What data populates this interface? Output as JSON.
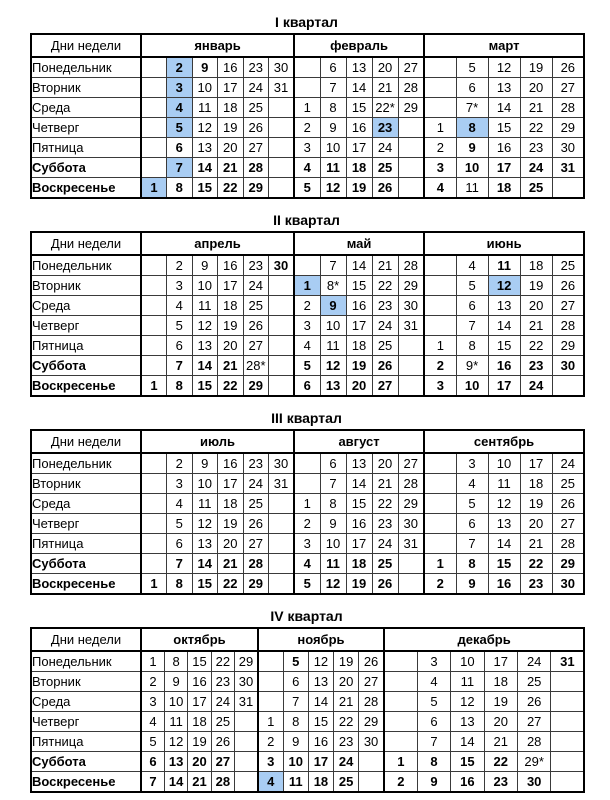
{
  "colors": {
    "holiday_cell_bg": "#a9cdf3",
    "dayoff_text": "#dd1111",
    "regular_text": "#000000",
    "border": "#000000"
  },
  "days_header": "Дни недели",
  "day_names": [
    {
      "label": "Понедельник",
      "weekend": false
    },
    {
      "label": "Вторник",
      "weekend": false
    },
    {
      "label": "Среда",
      "weekend": false
    },
    {
      "label": "Четверг",
      "weekend": false
    },
    {
      "label": "Пятница",
      "weekend": false
    },
    {
      "label": "Суббота",
      "weekend": true
    },
    {
      "label": "Воскресенье",
      "weekend": true
    }
  ],
  "quarters": [
    {
      "title": "I квартал",
      "months": [
        {
          "name": "январь",
          "rows": [
            [
              "",
              "2h",
              "9r",
              "16",
              "23",
              "30"
            ],
            [
              "",
              "3h",
              "10",
              "17",
              "24",
              "31"
            ],
            [
              "",
              "4h",
              "11",
              "18",
              "25",
              ""
            ],
            [
              "",
              "5h",
              "12",
              "19",
              "26",
              ""
            ],
            [
              "",
              "6r",
              "13",
              "20",
              "27",
              ""
            ],
            [
              "",
              "7h",
              "14r",
              "21r",
              "28r",
              ""
            ],
            [
              "1h",
              "8r",
              "15r",
              "22r",
              "29r",
              ""
            ]
          ]
        },
        {
          "name": "февраль",
          "rows": [
            [
              "",
              "6",
              "13",
              "20",
              "27"
            ],
            [
              "",
              "7",
              "14",
              "21",
              "28"
            ],
            [
              "1",
              "8",
              "15",
              "22*",
              "29"
            ],
            [
              "2",
              "9",
              "16",
              "23h",
              ""
            ],
            [
              "3",
              "10",
              "17",
              "24",
              ""
            ],
            [
              "4r",
              "11r",
              "18r",
              "25r",
              ""
            ],
            [
              "5r",
              "12r",
              "19r",
              "26r",
              ""
            ]
          ]
        },
        {
          "name": "март",
          "rows": [
            [
              "",
              "5",
              "12",
              "19",
              "26"
            ],
            [
              "",
              "6",
              "13",
              "20",
              "27"
            ],
            [
              "",
              "7*",
              "14",
              "21",
              "28"
            ],
            [
              "1",
              "8h",
              "15",
              "22",
              "29"
            ],
            [
              "2",
              "9r",
              "16",
              "23",
              "30"
            ],
            [
              "3r",
              "10r",
              "17r",
              "24r",
              "31r"
            ],
            [
              "4r",
              "11",
              "18r",
              "25r",
              ""
            ]
          ]
        }
      ]
    },
    {
      "title": "II квартал",
      "months": [
        {
          "name": "апрель",
          "rows": [
            [
              "",
              "2",
              "9",
              "16",
              "23",
              "30r"
            ],
            [
              "",
              "3",
              "10",
              "17",
              "24",
              ""
            ],
            [
              "",
              "4",
              "11",
              "18",
              "25",
              ""
            ],
            [
              "",
              "5",
              "12",
              "19",
              "26",
              ""
            ],
            [
              "",
              "6",
              "13",
              "20",
              "27",
              ""
            ],
            [
              "",
              "7r",
              "14r",
              "21r",
              "28*",
              ""
            ],
            [
              "1r",
              "8r",
              "15r",
              "22r",
              "29r",
              ""
            ]
          ]
        },
        {
          "name": "май",
          "rows": [
            [
              "",
              "7",
              "14",
              "21",
              "28"
            ],
            [
              "1h",
              "8*",
              "15",
              "22",
              "29"
            ],
            [
              "2",
              "9h",
              "16",
              "23",
              "30"
            ],
            [
              "3",
              "10",
              "17",
              "24",
              "31"
            ],
            [
              "4",
              "11",
              "18",
              "25",
              ""
            ],
            [
              "5r",
              "12r",
              "19r",
              "26r",
              ""
            ],
            [
              "6r",
              "13r",
              "20r",
              "27r",
              ""
            ]
          ]
        },
        {
          "name": "июнь",
          "rows": [
            [
              "",
              "4",
              "11r",
              "18",
              "25"
            ],
            [
              "",
              "5",
              "12h",
              "19",
              "26"
            ],
            [
              "",
              "6",
              "13",
              "20",
              "27"
            ],
            [
              "",
              "7",
              "14",
              "21",
              "28"
            ],
            [
              "1",
              "8",
              "15",
              "22",
              "29"
            ],
            [
              "2r",
              "9*",
              "16r",
              "23r",
              "30r"
            ],
            [
              "3r",
              "10r",
              "17r",
              "24r",
              ""
            ]
          ]
        }
      ]
    },
    {
      "title": "III квартал",
      "months": [
        {
          "name": "июль",
          "rows": [
            [
              "",
              "2",
              "9",
              "16",
              "23",
              "30"
            ],
            [
              "",
              "3",
              "10",
              "17",
              "24",
              "31"
            ],
            [
              "",
              "4",
              "11",
              "18",
              "25",
              ""
            ],
            [
              "",
              "5",
              "12",
              "19",
              "26",
              ""
            ],
            [
              "",
              "6",
              "13",
              "20",
              "27",
              ""
            ],
            [
              "",
              "7r",
              "14r",
              "21r",
              "28r",
              ""
            ],
            [
              "1r",
              "8r",
              "15r",
              "22r",
              "29r",
              ""
            ]
          ]
        },
        {
          "name": "август",
          "rows": [
            [
              "",
              "6",
              "13",
              "20",
              "27"
            ],
            [
              "",
              "7",
              "14",
              "21",
              "28"
            ],
            [
              "1",
              "8",
              "15",
              "22",
              "29"
            ],
            [
              "2",
              "9",
              "16",
              "23",
              "30"
            ],
            [
              "3",
              "10",
              "17",
              "24",
              "31"
            ],
            [
              "4r",
              "11r",
              "18r",
              "25r",
              ""
            ],
            [
              "5r",
              "12r",
              "19r",
              "26r",
              ""
            ]
          ]
        },
        {
          "name": "сентябрь",
          "rows": [
            [
              "",
              "3",
              "10",
              "17",
              "24"
            ],
            [
              "",
              "4",
              "11",
              "18",
              "25"
            ],
            [
              "",
              "5",
              "12",
              "19",
              "26"
            ],
            [
              "",
              "6",
              "13",
              "20",
              "27"
            ],
            [
              "",
              "7",
              "14",
              "21",
              "28"
            ],
            [
              "1r",
              "8r",
              "15r",
              "22r",
              "29r"
            ],
            [
              "2r",
              "9r",
              "16r",
              "23r",
              "30r"
            ]
          ]
        }
      ]
    },
    {
      "title": "IV квартал",
      "months": [
        {
          "name": "октябрь",
          "rows": [
            [
              "1",
              "8",
              "15",
              "22",
              "29"
            ],
            [
              "2",
              "9",
              "16",
              "23",
              "30"
            ],
            [
              "3",
              "10",
              "17",
              "24",
              "31"
            ],
            [
              "4",
              "11",
              "18",
              "25",
              ""
            ],
            [
              "5",
              "12",
              "19",
              "26",
              ""
            ],
            [
              "6r",
              "13r",
              "20r",
              "27r",
              ""
            ],
            [
              "7r",
              "14r",
              "21r",
              "28r",
              ""
            ]
          ]
        },
        {
          "name": "ноябрь",
          "rows": [
            [
              "",
              "5r",
              "12",
              "19",
              "26"
            ],
            [
              "",
              "6",
              "13",
              "20",
              "27"
            ],
            [
              "",
              "7",
              "14",
              "21",
              "28"
            ],
            [
              "1",
              "8",
              "15",
              "22",
              "29"
            ],
            [
              "2",
              "9",
              "16",
              "23",
              "30"
            ],
            [
              "3r",
              "10r",
              "17r",
              "24r",
              ""
            ],
            [
              "4h",
              "11r",
              "18r",
              "25r",
              ""
            ]
          ]
        },
        {
          "name": "декабрь",
          "rows": [
            [
              "",
              "3",
              "10",
              "17",
              "24",
              "31r"
            ],
            [
              "",
              "4",
              "11",
              "18",
              "25",
              ""
            ],
            [
              "",
              "5",
              "12",
              "19",
              "26",
              ""
            ],
            [
              "",
              "6",
              "13",
              "20",
              "27",
              ""
            ],
            [
              "",
              "7",
              "14",
              "21",
              "28",
              ""
            ],
            [
              "1r",
              "8r",
              "15r",
              "22r",
              "29*",
              ""
            ],
            [
              "2r",
              "9r",
              "16r",
              "23r",
              "30r",
              ""
            ]
          ]
        }
      ]
    }
  ]
}
